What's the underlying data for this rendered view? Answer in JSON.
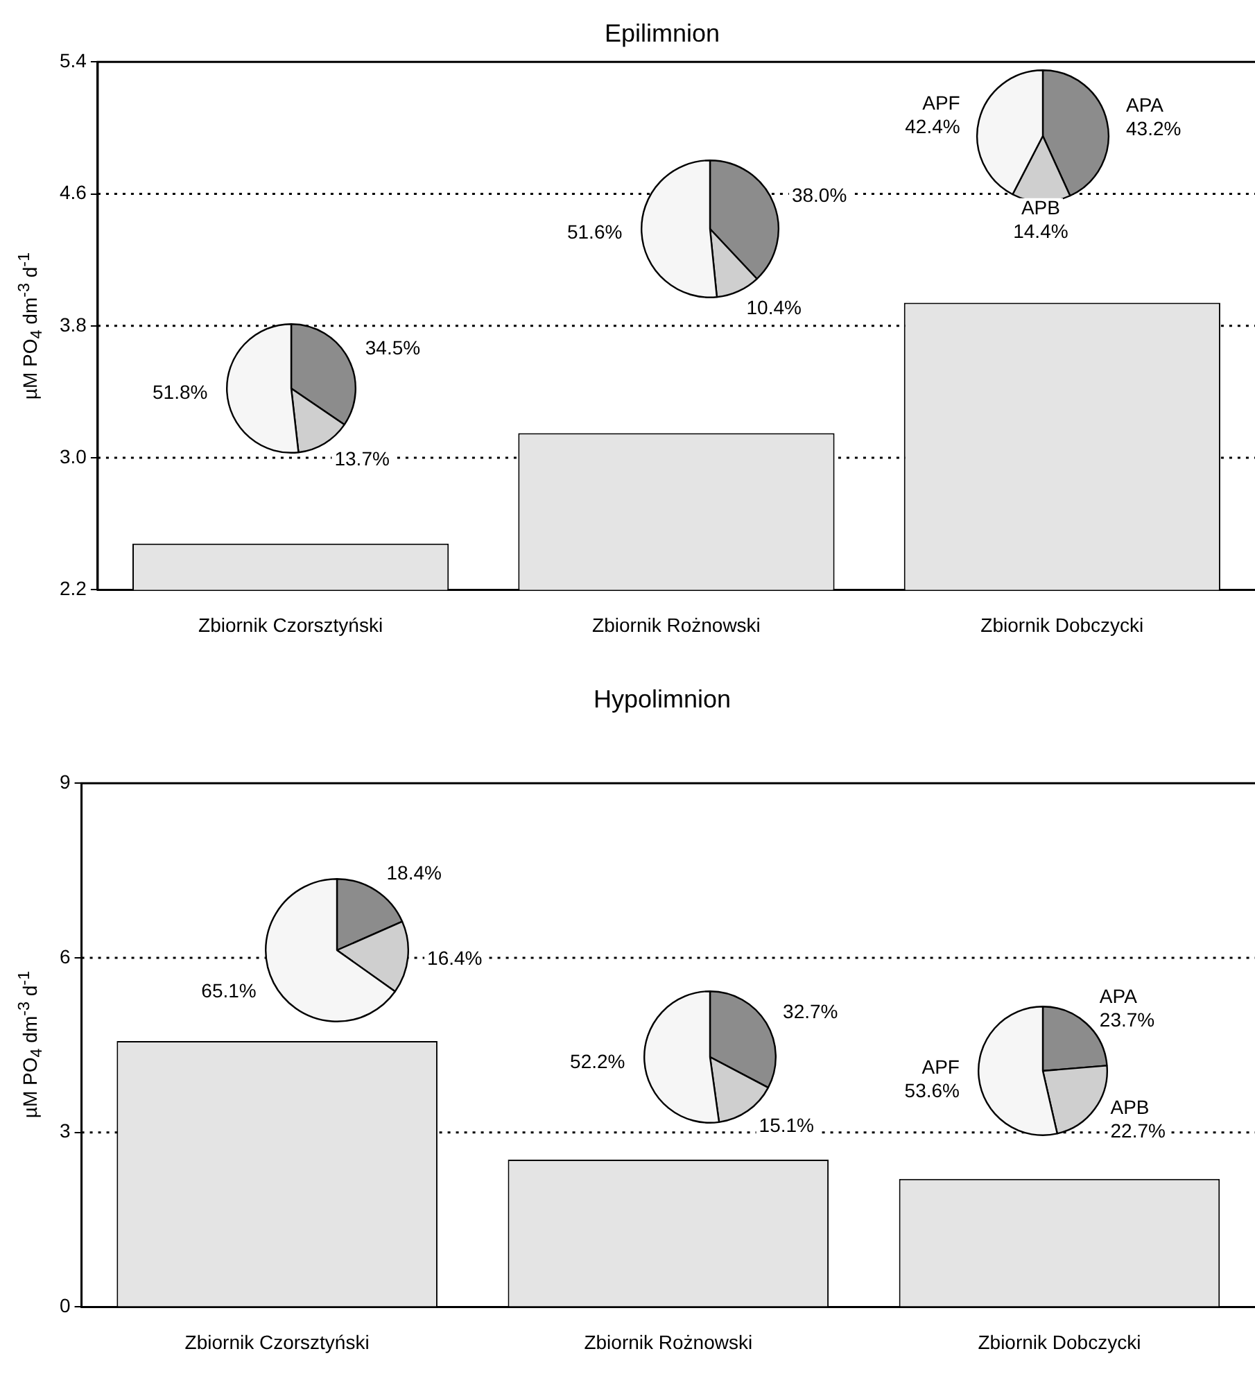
{
  "chart_data": [
    {
      "type": "bar",
      "title": "Epilimnion",
      "ylabel": "µM PO$_{4}$ dm$^{-3}$ d$^{-1}$",
      "categories": [
        "Zbiornik Czorsztyński",
        "Zbiornik Rożnowski",
        "Zbiornik Dobczycki"
      ],
      "values": [
        2.48,
        3.15,
        3.94
      ],
      "color": "#e4e4e4",
      "ylim": [
        2.2,
        5.4
      ],
      "yticks": [
        2.2,
        {
          "value": 3,
          "label": "3.0"
        },
        3.8,
        4.6,
        5.4
      ],
      "grid": "y",
      "line_style": "dotted"
    },
    {
      "type": "bar",
      "title": "Hypolimnion",
      "ylabel": "µM PO$_{4}$ dm$^{-3}$ d$^{-1}$",
      "categories": [
        "Zbiornik Czorsztyński",
        "Zbiornik Rożnowski",
        "Zbiornik Dobczycki"
      ],
      "values": [
        4.57,
        2.53,
        2.2
      ],
      "color": "#e4e4e4",
      "ylim": [
        0,
        9
      ],
      "yticks": [
        0,
        3,
        6,
        9
      ],
      "grid": "y",
      "line_style": "dotted"
    },
    {
      "type": "pie",
      "categories": [
        null,
        null,
        null
      ],
      "values": [
        34.5,
        13.7,
        51.8
      ],
      "value_labels": [
        "34.5%",
        "13.7%",
        "51.8%"
      ],
      "colors": [
        "#8c8c8c",
        "#cfcfcf",
        "#f6f6f6"
      ]
    },
    {
      "type": "pie",
      "categories": [
        null,
        null,
        null
      ],
      "values": [
        38.0,
        10.4,
        51.6
      ],
      "value_labels": [
        "38.0%",
        "10.4%",
        "51.6%"
      ],
      "colors": [
        "#8c8c8c",
        "#cfcfcf",
        "#f6f6f6"
      ]
    },
    {
      "type": "pie",
      "categories": [
        "APA",
        "APB",
        "APF"
      ],
      "values": [
        43.2,
        14.4,
        42.4
      ],
      "value_labels": [
        "43.2%",
        "14.4%",
        "42.4%"
      ],
      "colors": [
        "#8c8c8c",
        "#cfcfcf",
        "#f6f6f6"
      ]
    },
    {
      "type": "pie",
      "categories": [
        null,
        null,
        null
      ],
      "values": [
        18.4,
        16.4,
        65.1
      ],
      "value_labels": [
        "18.4%",
        "16.4%",
        "65.1%"
      ],
      "colors": [
        "#8c8c8c",
        "#cfcfcf",
        "#f6f6f6"
      ]
    },
    {
      "type": "pie",
      "categories": [
        null,
        null,
        null
      ],
      "values": [
        32.7,
        15.1,
        52.2
      ],
      "value_labels": [
        "32.7%",
        "15.1%",
        "52.2%"
      ],
      "colors": [
        "#8c8c8c",
        "#cfcfcf",
        "#f6f6f6"
      ]
    },
    {
      "type": "pie",
      "categories": [
        "APA",
        "APB",
        "APF"
      ],
      "values": [
        23.7,
        22.7,
        53.6
      ],
      "value_labels": [
        "23.7%",
        "22.7%",
        "53.6%"
      ],
      "colors": [
        "#8c8c8c",
        "#cfcfcf",
        "#f6f6f6"
      ]
    }
  ]
}
